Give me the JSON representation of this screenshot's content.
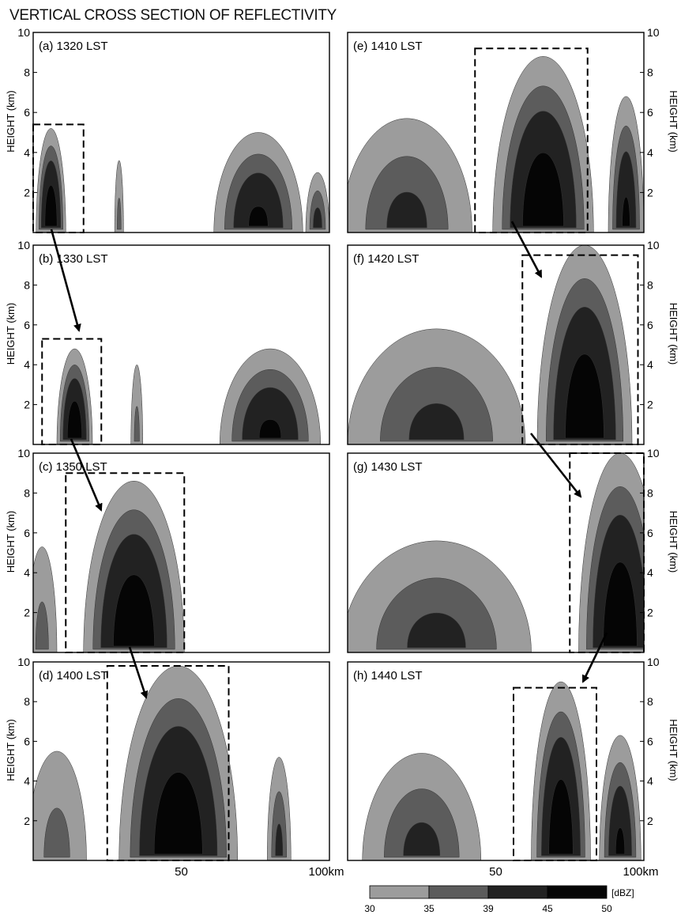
{
  "figure_title": "VERTICAL CROSS SECTION OF REFLECTIVITY",
  "y_axis_label": "HEIGHT (km)",
  "y_ticks": [
    "2",
    "4",
    "6",
    "8",
    "10"
  ],
  "x_ticks_left": [
    "50",
    "100km"
  ],
  "x_ticks_right": [
    "50",
    "100km"
  ],
  "colorbar": {
    "unit": "[dBZ]",
    "levels": [
      "30",
      "35",
      "39",
      "45",
      "50"
    ],
    "colors": [
      "#9c9c9c",
      "#5c5c5c",
      "#222222",
      "#050505"
    ]
  },
  "chart_data": [
    {
      "type": "contour",
      "panel": "(a)",
      "time": "1320 LST",
      "xlim": [
        0,
        100
      ],
      "ylim": [
        0,
        10
      ],
      "cells": [
        {
          "x": 6,
          "top": 5.2,
          "halfwidth": 5,
          "peak": 50
        },
        {
          "x": 29,
          "top": 3.6,
          "halfwidth": 1.5,
          "peak": 35
        },
        {
          "x": 76,
          "top": 5.0,
          "halfwidth": 15,
          "peak": 45
        },
        {
          "x": 96,
          "top": 3.0,
          "halfwidth": 4,
          "peak": 40
        }
      ],
      "box": {
        "x0": 0,
        "x1": 17,
        "ytop": 5.4
      }
    },
    {
      "type": "contour",
      "panel": "(b)",
      "time": "1330 LST",
      "xlim": [
        0,
        100
      ],
      "ylim": [
        0,
        10
      ],
      "cells": [
        {
          "x": 14,
          "top": 4.8,
          "halfwidth": 6,
          "peak": 50
        },
        {
          "x": 35,
          "top": 4.0,
          "halfwidth": 2,
          "peak": 35
        },
        {
          "x": 80,
          "top": 4.8,
          "halfwidth": 17,
          "peak": 45
        }
      ],
      "box": {
        "x0": 3,
        "x1": 23,
        "ytop": 5.3
      }
    },
    {
      "type": "contour",
      "panel": "(c)",
      "time": "1350 LST",
      "xlim": [
        0,
        100
      ],
      "ylim": [
        0,
        10
      ],
      "cells": [
        {
          "x": 34,
          "top": 8.6,
          "halfwidth": 17,
          "peak": 50
        },
        {
          "x": 3,
          "top": 5.3,
          "halfwidth": 5,
          "peak": 35
        }
      ],
      "box": {
        "x0": 11,
        "x1": 51,
        "ytop": 9.0
      }
    },
    {
      "type": "contour",
      "panel": "(d)",
      "time": "1400 LST",
      "xlim": [
        0,
        100
      ],
      "ylim": [
        0,
        10
      ],
      "cells": [
        {
          "x": 49,
          "top": 9.8,
          "halfwidth": 20,
          "peak": 50
        },
        {
          "x": 8,
          "top": 5.5,
          "halfwidth": 10,
          "peak": 35
        },
        {
          "x": 83,
          "top": 5.2,
          "halfwidth": 4,
          "peak": 39
        }
      ],
      "box": {
        "x0": 25,
        "x1": 66,
        "ytop": 9.8
      }
    },
    {
      "type": "contour",
      "panel": "(e)",
      "time": "1410 LST",
      "xlim": [
        0,
        100
      ],
      "ylim": [
        0,
        10
      ],
      "cells": [
        {
          "x": 66,
          "top": 8.8,
          "halfwidth": 17,
          "peak": 50
        },
        {
          "x": 20,
          "top": 5.7,
          "halfwidth": 22,
          "peak": 39
        },
        {
          "x": 94,
          "top": 6.8,
          "halfwidth": 6,
          "peak": 45
        }
      ],
      "box": {
        "x0": 43,
        "x1": 81,
        "ytop": 9.2
      }
    },
    {
      "type": "contour",
      "panel": "(f)",
      "time": "1420 LST",
      "xlim": [
        0,
        100
      ],
      "ylim": [
        0,
        10
      ],
      "cells": [
        {
          "x": 80,
          "top": 10.0,
          "halfwidth": 16,
          "peak": 50
        },
        {
          "x": 30,
          "top": 5.8,
          "halfwidth": 30,
          "peak": 39
        }
      ],
      "box": {
        "x0": 59,
        "x1": 98,
        "ytop": 9.5
      }
    },
    {
      "type": "contour",
      "panel": "(g)",
      "time": "1430 LST",
      "xlim": [
        0,
        100
      ],
      "ylim": [
        0,
        10
      ],
      "cells": [
        {
          "x": 92,
          "top": 10.0,
          "halfwidth": 14,
          "peak": 50
        },
        {
          "x": 30,
          "top": 5.6,
          "halfwidth": 32,
          "peak": 39
        }
      ],
      "box": {
        "x0": 75,
        "x1": 100,
        "ytop": 10.0
      }
    },
    {
      "type": "contour",
      "panel": "(h)",
      "time": "1440 LST",
      "xlim": [
        0,
        100
      ],
      "ylim": [
        0,
        10
      ],
      "cells": [
        {
          "x": 72,
          "top": 9.0,
          "halfwidth": 10,
          "peak": 50
        },
        {
          "x": 25,
          "top": 5.4,
          "halfwidth": 20,
          "peak": 39
        },
        {
          "x": 92,
          "top": 6.3,
          "halfwidth": 7,
          "peak": 45
        }
      ],
      "box": {
        "x0": 56,
        "x1": 84,
        "ytop": 8.7
      }
    }
  ]
}
